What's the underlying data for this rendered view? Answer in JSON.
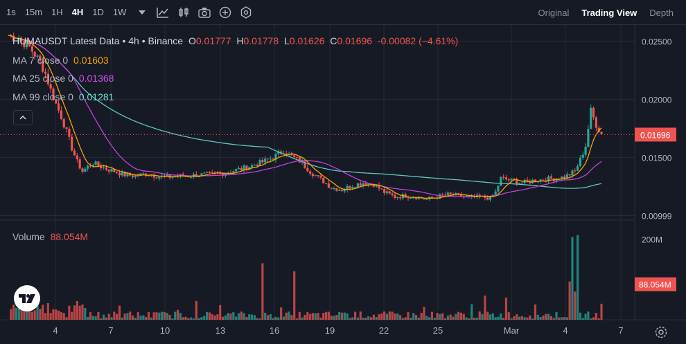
{
  "toolbar": {
    "timeframes": [
      "1s",
      "15m",
      "1H",
      "4H",
      "1D",
      "1W"
    ],
    "active_timeframe": "4H",
    "icons": [
      "chevron-down-icon",
      "indicators-icon",
      "candle-type-icon",
      "camera-icon",
      "add-icon",
      "settings-icon"
    ],
    "views": [
      "Original",
      "Trading View",
      "Depth"
    ],
    "active_view": "Trading View"
  },
  "legend": {
    "symbol": "HUMAUSDT Latest Data • 4h • Binance",
    "o_label": "O",
    "o": "0.01777",
    "h_label": "H",
    "h": "0.01778",
    "l_label": "L",
    "l": "0.01626",
    "c_label": "C",
    "c": "0.01696",
    "change": "-0.00082 (−4.61%)",
    "ma7_label": "MA 7 close 0",
    "ma7": "0.01603",
    "ma25_label": "MA 25 close 0",
    "ma25": "0.01368",
    "ma99_label": "MA 99 close 0",
    "ma99": "0.01281",
    "volume_label": "Volume",
    "volume": "88.054M"
  },
  "colors": {
    "background": "#161a25",
    "up": "#26a69a",
    "down": "#ef5350",
    "ma7": "#f7a600",
    "ma25": "#c440e0",
    "ma99": "#5ec8c0",
    "grid": "#262a35"
  },
  "chart_data": [
    {
      "type": "candlestick",
      "title": "HUMAUSDT Latest Data • 4h • Binance",
      "y_ticks": [
        "0.02500",
        "0.02000",
        "0.01500",
        "0.00999"
      ],
      "ylim": [
        0.0096,
        0.0264
      ],
      "current_price_label": "0.01696",
      "x_ticks": [
        "4",
        "7",
        "10",
        "13",
        "16",
        "19",
        "22",
        "25",
        "Mar",
        "4",
        "7"
      ],
      "moving_averages": [
        {
          "name": "MA 7 close 0",
          "value": 0.01603
        },
        {
          "name": "MA 25 close 0",
          "value": 0.01368
        },
        {
          "name": "MA 99 close 0",
          "value": 0.01281
        }
      ],
      "approx_close_path": [
        [
          0,
          0.0255
        ],
        [
          4,
          0.0252
        ],
        [
          8,
          0.0245
        ],
        [
          12,
          0.0232
        ],
        [
          14,
          0.0222
        ],
        [
          16,
          0.0208
        ],
        [
          18,
          0.0196
        ],
        [
          20,
          0.0185
        ],
        [
          22,
          0.0172
        ],
        [
          24,
          0.0158
        ],
        [
          26,
          0.0146
        ],
        [
          28,
          0.0138
        ],
        [
          30,
          0.0142
        ],
        [
          32,
          0.0145
        ],
        [
          36,
          0.0141
        ],
        [
          40,
          0.0138
        ],
        [
          44,
          0.0135
        ],
        [
          48,
          0.0134
        ],
        [
          52,
          0.0136
        ],
        [
          56,
          0.0134
        ],
        [
          60,
          0.0133
        ],
        [
          64,
          0.0134
        ],
        [
          68,
          0.0134
        ],
        [
          72,
          0.0135
        ],
        [
          76,
          0.0135
        ],
        [
          80,
          0.0136
        ],
        [
          84,
          0.0138
        ],
        [
          88,
          0.014
        ],
        [
          92,
          0.0143
        ],
        [
          96,
          0.0146
        ],
        [
          100,
          0.015
        ],
        [
          104,
          0.0156
        ],
        [
          106,
          0.0152
        ],
        [
          110,
          0.0147
        ],
        [
          114,
          0.0138
        ],
        [
          118,
          0.0131
        ],
        [
          122,
          0.0124
        ],
        [
          126,
          0.0122
        ],
        [
          130,
          0.0126
        ],
        [
          134,
          0.0128
        ],
        [
          138,
          0.0127
        ],
        [
          142,
          0.012
        ],
        [
          146,
          0.0116
        ],
        [
          150,
          0.0117
        ],
        [
          154,
          0.0116
        ],
        [
          158,
          0.0114
        ],
        [
          162,
          0.0116
        ],
        [
          166,
          0.0118
        ],
        [
          170,
          0.0117
        ],
        [
          174,
          0.0115
        ],
        [
          178,
          0.0116
        ],
        [
          182,
          0.0115
        ],
        [
          184,
          0.012
        ],
        [
          186,
          0.0132
        ],
        [
          190,
          0.013
        ],
        [
          194,
          0.0128
        ],
        [
          198,
          0.013
        ],
        [
          202,
          0.0131
        ],
        [
          206,
          0.0132
        ],
        [
          210,
          0.0133
        ],
        [
          214,
          0.0138
        ],
        [
          216,
          0.0148
        ],
        [
          218,
          0.016
        ],
        [
          220,
          0.019
        ],
        [
          222,
          0.0178
        ],
        [
          224,
          0.017
        ]
      ]
    },
    {
      "type": "bar",
      "title": "Volume",
      "y_ticks": [
        "200M"
      ],
      "current_value_label": "88.054M",
      "ylim": [
        0,
        230
      ],
      "notes": "volume in millions; tallest bars near Mar 4-5 (~210M); spike near 16 (~140M) and 18 (~120M)"
    }
  ]
}
